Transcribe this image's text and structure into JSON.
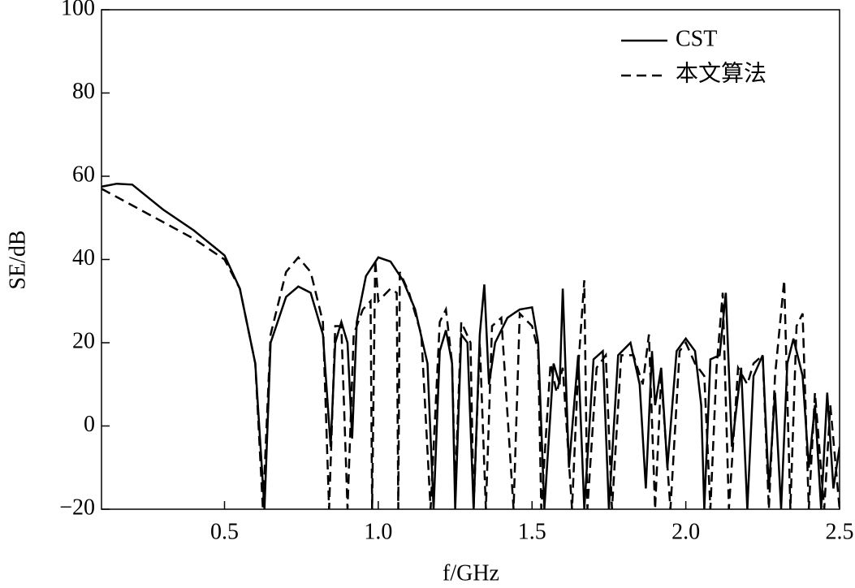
{
  "chart_data": {
    "type": "line",
    "xlabel": "f/GHz",
    "ylabel": "SE/dB",
    "xlim": [
      0.1,
      2.5
    ],
    "ylim": [
      -20,
      100
    ],
    "xticks": [
      0.5,
      {
        "value": 1.0,
        "label": "1.0"
      },
      1.5,
      {
        "value": 2.0,
        "label": "2.0"
      },
      2.5
    ],
    "yticks": [
      {
        "value": -20,
        "label": "−20"
      },
      0,
      20,
      40,
      60,
      80,
      100
    ],
    "legend": "upper right",
    "series": [
      {
        "name": "CST",
        "color": "#000000",
        "dash": "solid",
        "x": [
          0.1,
          0.15,
          0.2,
          0.3,
          0.4,
          0.5,
          0.55,
          0.6,
          0.63,
          0.65,
          0.7,
          0.74,
          0.78,
          0.82,
          0.845,
          0.86,
          0.88,
          0.9,
          0.915,
          0.93,
          0.96,
          1.0,
          1.04,
          1.08,
          1.12,
          1.16,
          1.18,
          1.2,
          1.22,
          1.24,
          1.25,
          1.27,
          1.29,
          1.31,
          1.33,
          1.345,
          1.36,
          1.38,
          1.42,
          1.46,
          1.5,
          1.52,
          1.54,
          1.57,
          1.59,
          1.6,
          1.62,
          1.65,
          1.67,
          1.7,
          1.73,
          1.75,
          1.78,
          1.82,
          1.85,
          1.87,
          1.89,
          1.9,
          1.92,
          1.94,
          1.97,
          2.0,
          2.03,
          2.05,
          2.06,
          2.08,
          2.11,
          2.13,
          2.15,
          2.18,
          2.2,
          2.22,
          2.25,
          2.27,
          2.29,
          2.31,
          2.33,
          2.35,
          2.38,
          2.4,
          2.42,
          2.44,
          2.46,
          2.48,
          2.5
        ],
        "values": [
          57.5,
          58.2,
          58,
          52,
          47,
          41,
          33,
          15,
          -20,
          20,
          31,
          33.5,
          32,
          22,
          -5,
          20,
          25,
          20,
          -3,
          25,
          36,
          40.5,
          39.5,
          35,
          28,
          15,
          -20,
          18,
          23,
          15,
          -20,
          22,
          20,
          -20,
          22,
          34,
          10,
          20,
          26,
          28,
          28.5,
          20,
          -20,
          15,
          10,
          33,
          -10,
          17,
          -20,
          16,
          18,
          -20,
          17,
          20,
          10,
          -15,
          18,
          5,
          14,
          -10,
          18,
          21,
          18,
          5,
          -20,
          16,
          17,
          32,
          -5,
          14,
          -20,
          12,
          17,
          -15,
          8,
          -20,
          15,
          21,
          12,
          -10,
          5,
          -20,
          8,
          -15,
          -5
        ]
      },
      {
        "name": "本文算法",
        "color": "#000000",
        "dash": "dashed",
        "x": [
          0.1,
          0.2,
          0.3,
          0.4,
          0.5,
          0.55,
          0.6,
          0.625,
          0.65,
          0.7,
          0.74,
          0.78,
          0.82,
          0.84,
          0.86,
          0.88,
          0.9,
          0.92,
          0.95,
          0.975,
          0.98,
          0.99,
          1.0,
          1.04,
          1.06,
          1.065,
          1.07,
          1.1,
          1.14,
          1.17,
          1.2,
          1.22,
          1.24,
          1.25,
          1.27,
          1.3,
          1.31,
          1.33,
          1.35,
          1.37,
          1.4,
          1.44,
          1.46,
          1.5,
          1.52,
          1.53,
          1.56,
          1.58,
          1.6,
          1.63,
          1.65,
          1.67,
          1.68,
          1.71,
          1.74,
          1.76,
          1.79,
          1.83,
          1.86,
          1.88,
          1.9,
          1.92,
          1.95,
          1.98,
          2.0,
          2.03,
          2.06,
          2.08,
          2.1,
          2.12,
          2.14,
          2.17,
          2.2,
          2.22,
          2.25,
          2.27,
          2.29,
          2.32,
          2.34,
          2.36,
          2.38,
          2.4,
          2.42,
          2.45,
          2.47,
          2.5
        ],
        "values": [
          57,
          53,
          49,
          45,
          40,
          33,
          15,
          -20,
          22,
          37,
          40.5,
          37,
          25,
          -20,
          24,
          24,
          -20,
          22,
          28,
          30,
          -20,
          40,
          30,
          33,
          32,
          -20,
          37,
          32,
          22,
          -20,
          25,
          28,
          15,
          -15,
          25,
          20,
          -20,
          20,
          -20,
          24,
          26,
          -20,
          27,
          24,
          18,
          -20,
          15,
          8,
          14,
          -20,
          14,
          35,
          -20,
          14,
          17,
          -20,
          17,
          17,
          10,
          22,
          -20,
          12,
          -20,
          18,
          20,
          15,
          12,
          -20,
          14,
          32,
          -20,
          14,
          10,
          15,
          17,
          -20,
          12,
          35,
          -20,
          24,
          27,
          -20,
          8,
          -20,
          5,
          -20
        ]
      }
    ]
  }
}
